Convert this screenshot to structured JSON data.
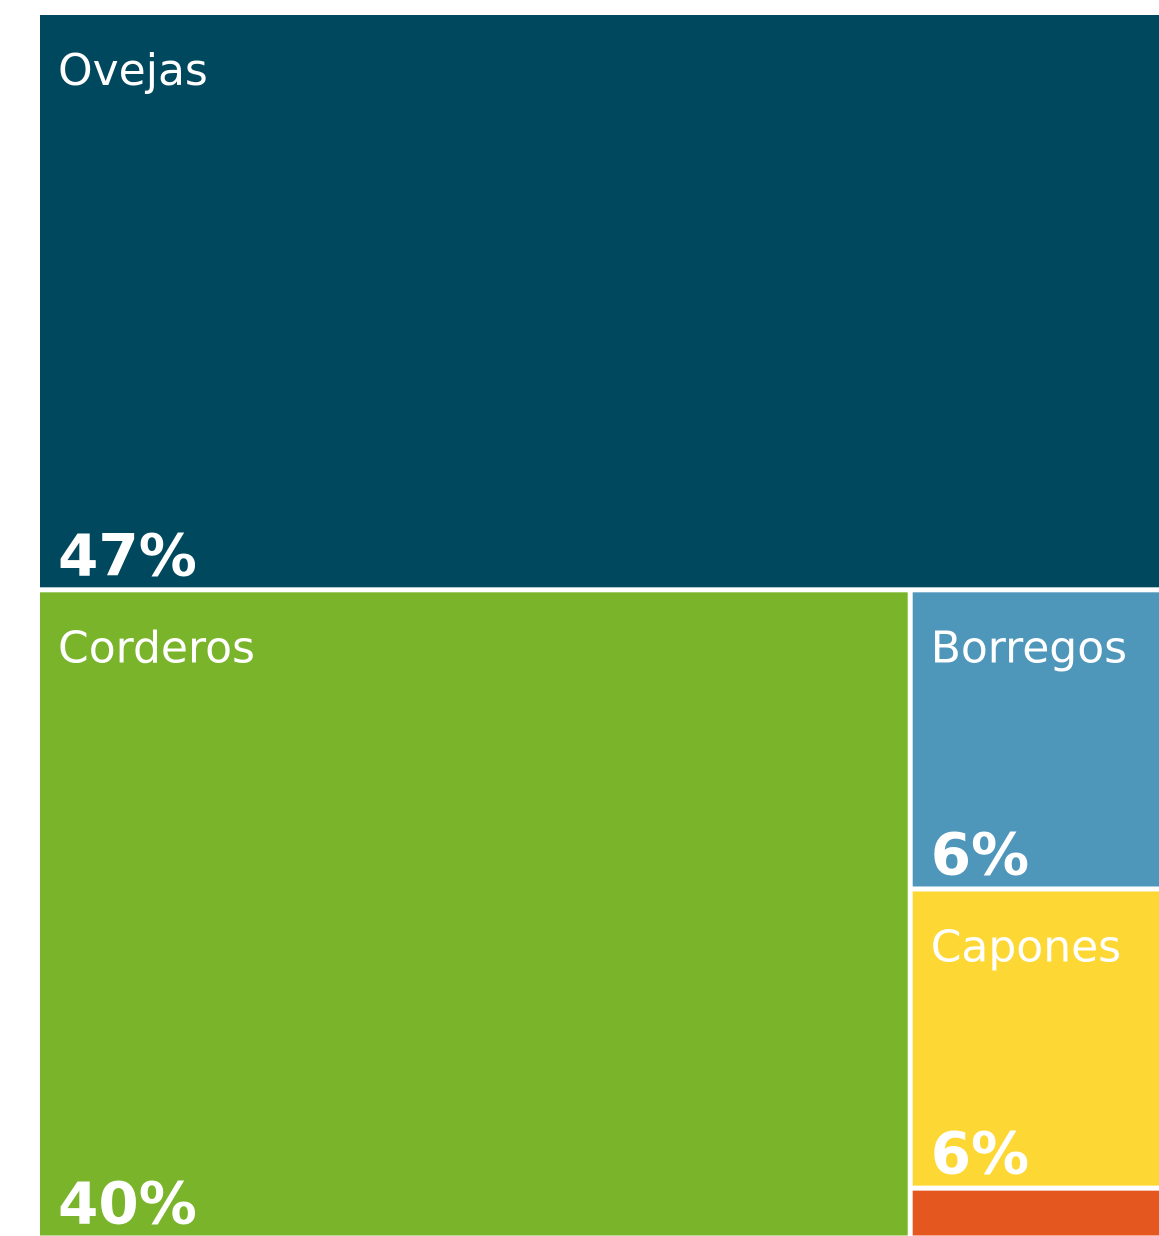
{
  "chart_data": {
    "type": "treemap",
    "categories": [
      "Ovejas",
      "Corderos",
      "Borregos",
      "Capones",
      null
    ],
    "values": [
      47,
      40,
      6,
      6,
      1
    ],
    "value_labels": [
      "47%",
      "40%",
      "6%",
      "6%",
      null
    ],
    "colors": [
      "#00485e",
      "#79b42a",
      "#4e96ba",
      "#fdd835",
      "#e4571e"
    ]
  }
}
